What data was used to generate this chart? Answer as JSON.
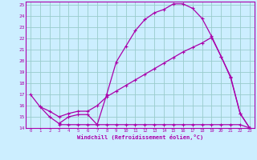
{
  "xlabel": "Windchill (Refroidissement éolien,°C)",
  "bg_color": "#cceeff",
  "grid_color": "#99cccc",
  "line_color": "#aa00aa",
  "xlim": [
    -0.5,
    23.5
  ],
  "ylim": [
    14,
    25.3
  ],
  "xticks": [
    0,
    1,
    2,
    3,
    4,
    5,
    6,
    7,
    8,
    9,
    10,
    11,
    12,
    13,
    14,
    15,
    16,
    17,
    18,
    19,
    20,
    21,
    22,
    23
  ],
  "yticks": [
    14,
    15,
    16,
    17,
    18,
    19,
    20,
    21,
    22,
    23,
    24,
    25
  ],
  "line1_x": [
    0,
    1,
    2,
    3,
    4,
    5,
    6,
    7,
    8,
    9,
    10,
    11,
    12,
    13,
    14,
    15,
    16,
    17,
    18,
    19,
    20,
    21,
    22,
    23
  ],
  "line1_y": [
    17.0,
    15.9,
    15.0,
    14.4,
    15.0,
    15.2,
    15.2,
    14.3,
    17.0,
    19.9,
    21.3,
    22.7,
    23.7,
    24.3,
    24.6,
    25.1,
    25.1,
    24.7,
    23.8,
    22.2,
    20.4,
    18.6,
    15.3,
    14.0
  ],
  "line2_x": [
    1,
    2,
    3,
    4,
    5,
    6,
    7,
    8,
    9,
    10,
    11,
    12,
    13,
    14,
    15,
    16,
    17,
    18,
    19,
    20,
    21,
    22,
    23
  ],
  "line2_y": [
    15.9,
    15.5,
    15.0,
    15.3,
    15.5,
    15.5,
    16.0,
    16.8,
    17.3,
    17.8,
    18.3,
    18.8,
    19.3,
    19.8,
    20.3,
    20.8,
    21.2,
    21.6,
    22.1,
    20.4,
    18.5,
    15.3,
    14.0
  ],
  "line3_x": [
    3,
    4,
    5,
    6,
    7,
    8,
    9,
    10,
    11,
    12,
    13,
    14,
    15,
    16,
    17,
    18,
    19,
    20,
    21,
    22,
    23
  ],
  "line3_y": [
    14.3,
    14.3,
    14.3,
    14.3,
    14.3,
    14.3,
    14.3,
    14.3,
    14.3,
    14.3,
    14.3,
    14.3,
    14.3,
    14.3,
    14.3,
    14.3,
    14.3,
    14.3,
    14.3,
    14.3,
    14.0
  ]
}
